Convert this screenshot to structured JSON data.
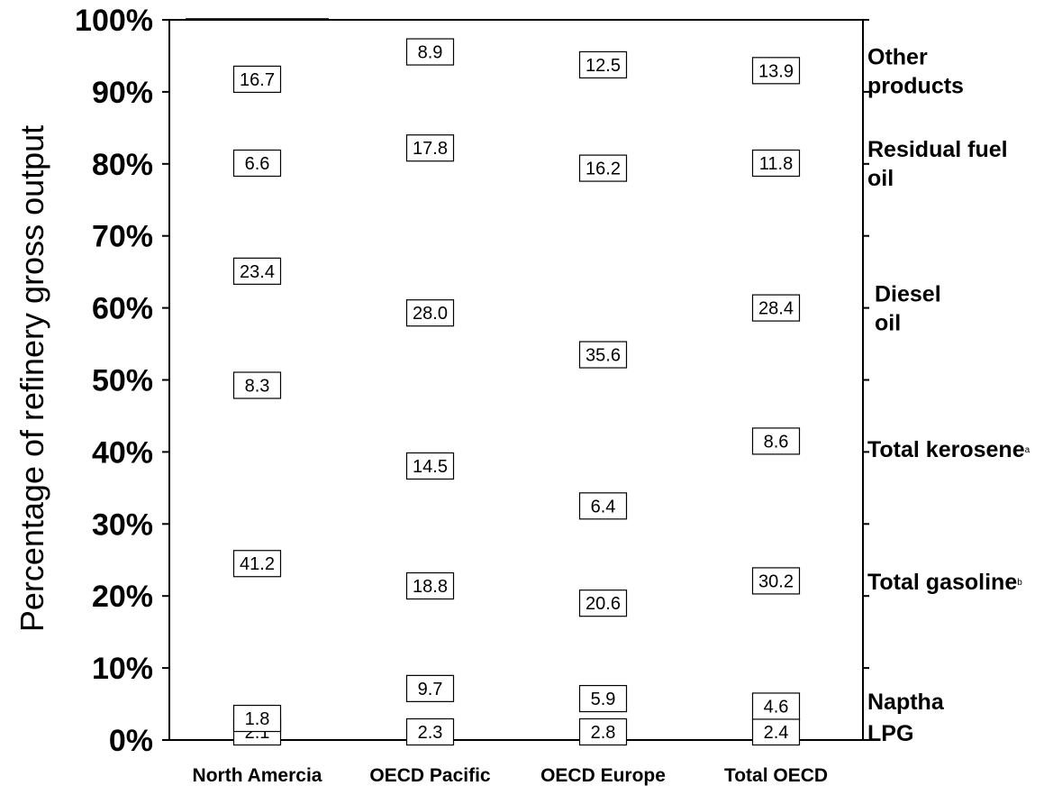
{
  "chart_data": {
    "type": "bar",
    "stacked": true,
    "title": "",
    "xlabel": "",
    "ylabel": "Percentage of refinery gross output",
    "ylim": [
      0,
      100
    ],
    "yticks": [
      "0%",
      "10%",
      "20%",
      "30%",
      "40%",
      "50%",
      "60%",
      "70%",
      "80%",
      "90%",
      "100%"
    ],
    "grid": false,
    "legend_position": "right",
    "categories": [
      "North Amercia",
      "OECD Pacific",
      "OECD Europe",
      "Total OECD"
    ],
    "series": [
      {
        "name": "LPG",
        "values": [
          2.1,
          2.3,
          2.8,
          2.4
        ],
        "labels": [
          "2.1",
          "2.3",
          "2.8",
          "2.4"
        ],
        "color": "#333333",
        "pattern": "solid"
      },
      {
        "name": "Naptha",
        "values": [
          1.8,
          9.7,
          5.9,
          4.6
        ],
        "labels": [
          "1.8",
          "9.7",
          "5.9",
          "4.6"
        ],
        "color": "#ffffff",
        "pattern": "sparse-diagonal"
      },
      {
        "name": "Total gasoline",
        "legend_sup": "b",
        "values": [
          41.2,
          18.8,
          20.6,
          30.2
        ],
        "labels": [
          "41.2",
          "18.8",
          "20.6",
          "30.2"
        ],
        "color": "#a8a8a8",
        "pattern": "fine-diagonal"
      },
      {
        "name": "Total kerosene",
        "legend_sup": "a",
        "values": [
          8.3,
          14.5,
          6.4,
          8.6
        ],
        "labels": [
          "8.3",
          "14.5",
          "6.4",
          "8.6"
        ],
        "color": "#ffffff",
        "pattern": "dense-diagonal"
      },
      {
        "name": "Diesel oil",
        "legend_lines": [
          "Diesel",
          "oil"
        ],
        "values": [
          23.4,
          28.0,
          35.6,
          28.4
        ],
        "labels": [
          "23.4",
          "28.0",
          "35.6",
          "28.4"
        ],
        "color": "#e6e6e6",
        "pattern": "solid"
      },
      {
        "name": "Residual fuel oil",
        "legend_lines": [
          "Residual fuel",
          "oil"
        ],
        "values": [
          6.6,
          17.8,
          16.2,
          11.8
        ],
        "labels": [
          "6.6",
          "17.8",
          "16.2",
          "11.8"
        ],
        "color": "#bdbdbd",
        "pattern": "grid"
      },
      {
        "name": "Other products",
        "legend_lines": [
          "Other",
          "products"
        ],
        "values": [
          16.7,
          8.9,
          12.5,
          13.9
        ],
        "labels": [
          "16.7",
          "8.9",
          "12.5",
          "13.9"
        ],
        "color": "#b3b3b3",
        "pattern": "solid"
      }
    ]
  }
}
